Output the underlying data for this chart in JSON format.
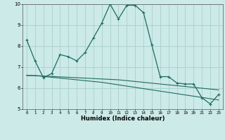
{
  "title": "",
  "xlabel": "Humidex (Indice chaleur)",
  "background_color": "#cceae7",
  "grid_color": "#aacfcc",
  "line_color": "#1e6b5e",
  "x_values": [
    0,
    1,
    2,
    3,
    4,
    5,
    6,
    7,
    8,
    9,
    10,
    11,
    12,
    13,
    14,
    15,
    16,
    17,
    18,
    19,
    20,
    21,
    22,
    23
  ],
  "y_main": [
    8.3,
    7.3,
    6.5,
    6.7,
    7.6,
    7.5,
    7.3,
    7.7,
    8.4,
    9.1,
    10.0,
    9.3,
    9.95,
    9.95,
    9.6,
    8.05,
    6.55,
    6.55,
    6.25,
    6.2,
    6.2,
    5.55,
    5.25,
    5.7
  ],
  "y_trend1": [
    6.6,
    6.6,
    6.58,
    6.56,
    6.54,
    6.52,
    6.5,
    6.48,
    6.46,
    6.44,
    6.42,
    6.4,
    6.36,
    6.32,
    6.28,
    6.24,
    6.2,
    6.16,
    6.12,
    6.08,
    6.04,
    6.0,
    5.96,
    5.92
  ],
  "y_trend2": [
    6.62,
    6.6,
    6.56,
    6.52,
    6.48,
    6.44,
    6.4,
    6.36,
    6.32,
    6.28,
    6.22,
    6.16,
    6.1,
    6.04,
    5.98,
    5.92,
    5.86,
    5.8,
    5.74,
    5.68,
    5.62,
    5.56,
    5.5,
    5.44
  ],
  "ylim": [
    5.0,
    10.0
  ],
  "xlim": [
    -0.5,
    23.5
  ],
  "yticks": [
    5,
    6,
    7,
    8,
    9,
    10
  ],
  "xticks": [
    0,
    1,
    2,
    3,
    4,
    5,
    6,
    7,
    8,
    9,
    10,
    11,
    12,
    13,
    14,
    15,
    16,
    17,
    18,
    19,
    20,
    21,
    22,
    23
  ]
}
